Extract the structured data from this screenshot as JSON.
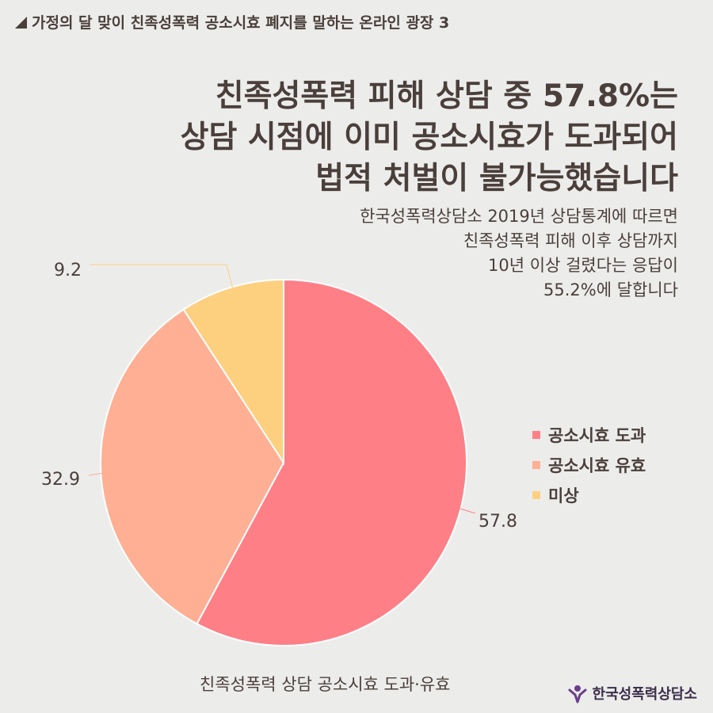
{
  "header": {
    "title": "가정의 달 맞이 친족성폭력 공소시효 폐지를 말하는 온라인 광장 3"
  },
  "headline": [
    "친족성폭력 피해 상담 중 57.8%는",
    "상담 시점에 이미 공소시효가 도과되어",
    "법적 처벌이 불가능했습니다"
  ],
  "description": [
    "한국성폭력상담소 2019년 상담통계에 따르면",
    "친족성폭력 피해 이후 상담까지",
    "10년 이상 걸렸다는 응답이",
    "55.2%에 달합니다"
  ],
  "chart_data": {
    "type": "pie",
    "title": "친족성폭력 상담 공소시효 도과·유효",
    "categories": [
      "공소시효 도과",
      "공소시효 유효",
      "미상"
    ],
    "values": [
      57.8,
      32.9,
      9.2
    ],
    "labels": [
      "57.8",
      "32.9",
      "9.2"
    ],
    "colors": [
      "#FF7F87",
      "#FFAF93",
      "#FDD080"
    ],
    "start_angle_deg": 0,
    "direction": "clockwise",
    "legend_position": "right"
  },
  "brand": {
    "name": "한국성폭력상담소",
    "icon": "organization-logo-icon"
  }
}
